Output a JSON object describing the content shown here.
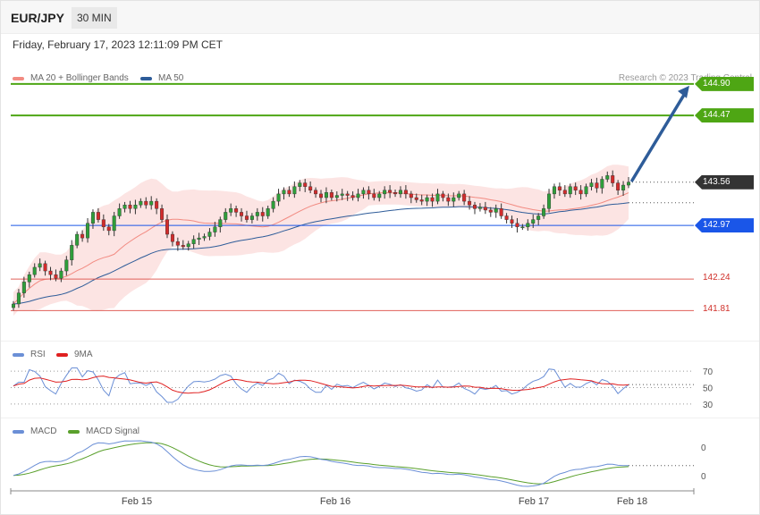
{
  "header": {
    "symbol": "EUR/JPY",
    "timeframe": "30 MIN"
  },
  "datetime": "Friday, February 17, 2023 12:11:09 PM CET",
  "credit": "Research © 2023 Trading Central",
  "legends": {
    "main": [
      {
        "label": "MA 20 + Bollinger Bands",
        "color": "#f28b82"
      },
      {
        "label": "MA 50",
        "color": "#2e5c99"
      }
    ],
    "rsi": [
      {
        "label": "RSI",
        "color": "#6b8fd6"
      },
      {
        "label": "9MA",
        "color": "#e02020"
      }
    ],
    "macd": [
      {
        "label": "MACD",
        "color": "#6b8fd6"
      },
      {
        "label": "MACD Signal",
        "color": "#5aa02c"
      }
    ]
  },
  "chart_data": [
    {
      "type": "candlestick",
      "panel": "price",
      "ylim": [
        141.4,
        145.3
      ],
      "levels": [
        {
          "value": 144.9,
          "label": "144.90",
          "color": "#4ea614",
          "style": "resistance"
        },
        {
          "value": 144.47,
          "label": "144.47",
          "color": "#4ea614",
          "style": "resistance"
        },
        {
          "value": 143.56,
          "label": "143.56",
          "color": "#333333",
          "style": "last"
        },
        {
          "value": 142.97,
          "label": "142.97",
          "color": "#1a56e8",
          "style": "pivot"
        },
        {
          "value": 142.24,
          "label": "142.24",
          "color": "#e0605a",
          "style": "support"
        },
        {
          "value": 141.81,
          "label": "141.81",
          "color": "#e0605a",
          "style": "support"
        }
      ],
      "close": [
        141.9,
        142.05,
        142.2,
        142.3,
        142.4,
        142.45,
        142.35,
        142.3,
        142.25,
        142.35,
        142.5,
        142.7,
        142.85,
        142.8,
        143.0,
        143.15,
        143.05,
        142.95,
        142.9,
        143.1,
        143.2,
        143.25,
        143.2,
        143.25,
        143.3,
        143.25,
        143.3,
        143.2,
        143.05,
        142.85,
        142.75,
        142.7,
        142.68,
        142.72,
        142.78,
        142.8,
        142.82,
        142.88,
        142.95,
        143.05,
        143.15,
        143.2,
        143.15,
        143.1,
        143.05,
        143.1,
        143.15,
        143.1,
        143.2,
        143.3,
        143.4,
        143.45,
        143.4,
        143.5,
        143.55,
        143.5,
        143.45,
        143.4,
        143.35,
        143.42,
        143.35,
        143.38,
        143.4,
        143.38,
        143.35,
        143.4,
        143.45,
        143.4,
        143.35,
        143.4,
        143.45,
        143.42,
        143.4,
        143.45,
        143.4,
        143.35,
        143.32,
        143.3,
        143.35,
        143.3,
        143.4,
        143.35,
        143.3,
        143.35,
        143.4,
        143.3,
        143.25,
        143.2,
        143.22,
        143.18,
        143.15,
        143.2,
        143.1,
        143.05,
        143.0,
        142.95,
        142.95,
        143.0,
        143.05,
        143.1,
        143.2,
        143.4,
        143.5,
        143.45,
        143.4,
        143.5,
        143.45,
        143.4,
        143.5,
        143.55,
        143.48,
        143.6,
        143.65,
        143.55,
        143.45,
        143.52,
        143.56
      ],
      "ma50_end": 143.28,
      "x_ticks": [
        "Feb 15",
        "Feb 16",
        "Feb 17",
        "Feb 18"
      ],
      "projection": {
        "from": 143.56,
        "to": 144.9
      }
    },
    {
      "type": "line",
      "panel": "rsi",
      "ylim": [
        20,
        80
      ],
      "y_ticks": [
        70,
        50,
        30
      ],
      "series_names": [
        "RSI",
        "9MA"
      ]
    },
    {
      "type": "line",
      "panel": "macd",
      "y_ticks": [
        "0",
        "0"
      ],
      "series_names": [
        "MACD",
        "MACD Signal"
      ]
    }
  ]
}
